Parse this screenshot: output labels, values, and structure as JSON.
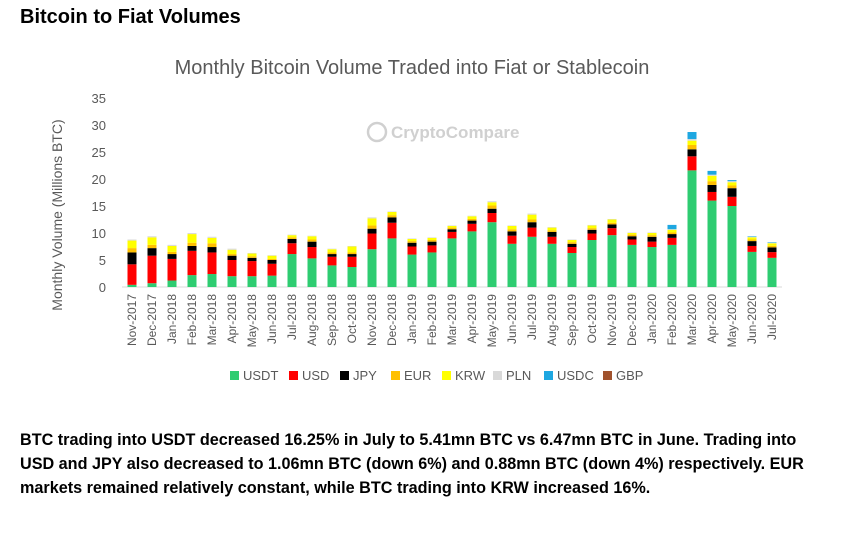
{
  "heading": "Bitcoin to Fiat Volumes",
  "caption": "BTC trading into USDT decreased 16.25%  in July to 5.41mn BTC vs 6.47mn BTC in June. Trading into USD and JPY also decreased to 1.06mn BTC (down 6%) and 0.88mn BTC (down 4%) respectively. EUR markets remained relatively constant, while BTC trading into KRW increased 16%.",
  "watermark": "CryptoCompare",
  "chart_data": {
    "type": "bar",
    "stacked": true,
    "title": "Monthly Bitcoin Volume Traded into Fiat or Stablecoin",
    "ylabel": "Monthly Volume (Millions BTC)",
    "xlabel": "",
    "ylim": [
      0,
      35
    ],
    "yticks": [
      0,
      5,
      10,
      15,
      20,
      25,
      30,
      35
    ],
    "grid": false,
    "legend_position": "bottom",
    "categories": [
      "Nov-2017",
      "Dec-2017",
      "Jan-2018",
      "Feb-2018",
      "Mar-2018",
      "Apr-2018",
      "May-2018",
      "Jun-2018",
      "Jul-2018",
      "Aug-2018",
      "Sep-2018",
      "Oct-2018",
      "Nov-2018",
      "Dec-2018",
      "Jan-2019",
      "Feb-2019",
      "Mar-2019",
      "Apr-2019",
      "May-2019",
      "Jun-2019",
      "Jul-2019",
      "Aug-2019",
      "Sep-2019",
      "Oct-2019",
      "Nov-2019",
      "Dec-2019",
      "Jan-2020",
      "Feb-2020",
      "Mar-2020",
      "Apr-2020",
      "May-2020",
      "Jun-2020",
      "Jul-2020"
    ],
    "series": [
      {
        "name": "USDT",
        "color": "#2ecc71",
        "values": [
          0.4,
          0.7,
          1.2,
          2.2,
          2.4,
          2.0,
          2.0,
          2.1,
          6.1,
          5.3,
          4.0,
          3.7,
          7.0,
          9.0,
          6.0,
          6.4,
          9.0,
          10.3,
          12.0,
          8.0,
          9.3,
          8.0,
          6.3,
          8.7,
          9.6,
          7.8,
          7.4,
          7.8,
          21.6,
          16.0,
          15.0,
          6.5,
          5.4
        ]
      },
      {
        "name": "USD",
        "color": "#ff0000",
        "values": [
          3.8,
          5.1,
          4.0,
          4.5,
          4.0,
          3.0,
          2.8,
          2.2,
          2.0,
          2.1,
          1.6,
          1.9,
          2.9,
          2.9,
          1.5,
          1.3,
          1.2,
          1.4,
          1.7,
          1.5,
          1.7,
          1.3,
          1.1,
          1.2,
          1.3,
          1.0,
          1.0,
          1.3,
          2.6,
          1.6,
          1.7,
          1.1,
          1.06
        ]
      },
      {
        "name": "JPY",
        "color": "#000000",
        "values": [
          2.2,
          1.4,
          0.9,
          0.9,
          1.0,
          0.8,
          0.6,
          0.7,
          0.8,
          1.0,
          0.5,
          0.5,
          0.9,
          1.0,
          0.7,
          0.7,
          0.5,
          0.6,
          0.8,
          0.8,
          1.0,
          0.9,
          0.6,
          0.7,
          0.7,
          0.6,
          0.9,
          0.7,
          1.3,
          1.3,
          1.6,
          0.9,
          0.88
        ]
      },
      {
        "name": "EUR",
        "color": "#ffc000",
        "values": [
          0.8,
          0.6,
          0.4,
          0.6,
          0.7,
          0.3,
          0.3,
          0.2,
          0.3,
          0.4,
          0.3,
          0.3,
          0.6,
          0.4,
          0.3,
          0.3,
          0.3,
          0.3,
          0.6,
          0.4,
          0.5,
          0.3,
          0.3,
          0.3,
          0.3,
          0.3,
          0.3,
          0.3,
          0.8,
          0.7,
          0.5,
          0.3,
          0.3
        ]
      },
      {
        "name": "KRW",
        "color": "#ffff00",
        "values": [
          1.4,
          1.4,
          1.1,
          1.6,
          1.0,
          0.8,
          0.5,
          0.6,
          0.4,
          0.6,
          0.6,
          1.1,
          1.3,
          0.6,
          0.4,
          0.4,
          0.3,
          0.5,
          0.6,
          0.6,
          0.9,
          0.5,
          0.4,
          0.5,
          0.6,
          0.3,
          0.4,
          0.5,
          0.8,
          1.0,
          0.6,
          0.4,
          0.45
        ]
      },
      {
        "name": "PLN",
        "color": "#d9d9d9",
        "values": [
          0.2,
          0.2,
          0.2,
          0.2,
          0.2,
          0.2,
          0.1,
          0.1,
          0.1,
          0.1,
          0.1,
          0.1,
          0.2,
          0.1,
          0.1,
          0.1,
          0.1,
          0.1,
          0.2,
          0.1,
          0.2,
          0.1,
          0.1,
          0.1,
          0.1,
          0.1,
          0.1,
          0.1,
          0.3,
          0.2,
          0.2,
          0.1,
          0.1
        ]
      },
      {
        "name": "USDC",
        "color": "#1ea7e1",
        "values": [
          0,
          0,
          0,
          0,
          0,
          0,
          0,
          0,
          0,
          0,
          0,
          0,
          0,
          0,
          0,
          0,
          0,
          0,
          0,
          0,
          0,
          0,
          0,
          0,
          0,
          0,
          0,
          0.8,
          1.3,
          0.7,
          0.2,
          0.1,
          0.1
        ]
      },
      {
        "name": "GBP",
        "color": "#a0522d",
        "values": [
          0,
          0,
          0,
          0,
          0,
          0,
          0,
          0,
          0,
          0,
          0,
          0,
          0,
          0,
          0,
          0,
          0,
          0,
          0,
          0,
          0,
          0,
          0,
          0,
          0,
          0,
          0,
          0,
          0,
          0,
          0,
          0,
          0
        ]
      }
    ]
  }
}
